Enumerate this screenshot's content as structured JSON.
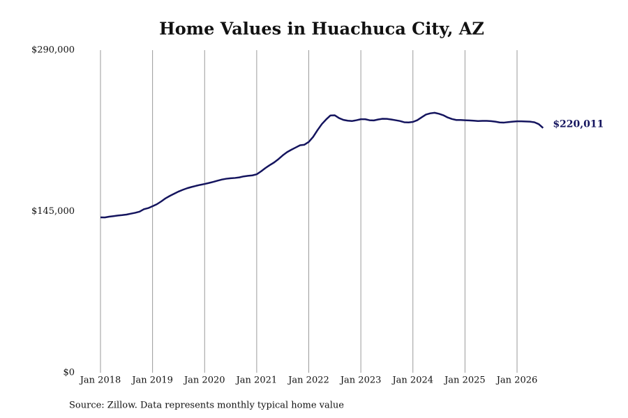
{
  "chart_data": {
    "type": "line",
    "title": "Home Values in Huachuca City, AZ",
    "source": "Source: Zillow. Data represents monthly typical home value",
    "x": [
      "2018-01",
      "2018-02",
      "2018-03",
      "2018-04",
      "2018-05",
      "2018-06",
      "2018-07",
      "2018-08",
      "2018-09",
      "2018-10",
      "2018-11",
      "2018-12",
      "2019-01",
      "2019-02",
      "2019-03",
      "2019-04",
      "2019-05",
      "2019-06",
      "2019-07",
      "2019-08",
      "2019-09",
      "2019-10",
      "2019-11",
      "2019-12",
      "2020-01",
      "2020-02",
      "2020-03",
      "2020-04",
      "2020-05",
      "2020-06",
      "2020-07",
      "2020-08",
      "2020-09",
      "2020-10",
      "2020-11",
      "2020-12",
      "2021-01",
      "2021-02",
      "2021-03",
      "2021-04",
      "2021-05",
      "2021-06",
      "2021-07",
      "2021-08",
      "2021-09",
      "2021-10",
      "2021-11",
      "2021-12",
      "2022-01",
      "2022-02",
      "2022-03",
      "2022-04",
      "2022-05",
      "2022-06",
      "2022-07",
      "2022-08",
      "2022-09",
      "2022-10",
      "2022-11",
      "2022-12",
      "2023-01",
      "2023-02",
      "2023-03",
      "2023-04",
      "2023-05",
      "2023-06",
      "2023-07",
      "2023-08",
      "2023-09",
      "2023-10",
      "2023-11",
      "2023-12",
      "2024-01",
      "2024-02",
      "2024-03",
      "2024-04",
      "2024-05",
      "2024-06",
      "2024-07",
      "2024-08",
      "2024-09",
      "2024-10",
      "2024-11",
      "2024-12",
      "2025-01",
      "2025-02",
      "2025-03",
      "2025-04",
      "2025-05",
      "2025-06",
      "2025-07",
      "2025-08",
      "2025-09",
      "2025-10",
      "2025-11",
      "2025-12",
      "2026-01",
      "2026-02",
      "2026-03",
      "2026-04",
      "2026-05",
      "2026-06",
      "2026-07"
    ],
    "series": [
      {
        "name": "Typical home value",
        "color": "#14145e",
        "values": [
          139700,
          139600,
          140300,
          140800,
          141300,
          141700,
          142200,
          143000,
          143800,
          144800,
          147000,
          148000,
          149700,
          151500,
          154000,
          156800,
          159000,
          161000,
          162900,
          164500,
          165900,
          167000,
          168000,
          168900,
          169700,
          170600,
          171600,
          172700,
          173700,
          174400,
          174800,
          175100,
          175600,
          176500,
          177000,
          177400,
          178400,
          181000,
          184000,
          186600,
          189000,
          192000,
          195400,
          198300,
          200500,
          202500,
          204500,
          205000,
          207500,
          212000,
          218000,
          223500,
          227700,
          231300,
          231400,
          228900,
          227300,
          226600,
          226300,
          227000,
          227900,
          227900,
          227000,
          226800,
          227700,
          228300,
          228200,
          227700,
          227000,
          226300,
          225200,
          225000,
          225500,
          227000,
          229600,
          232100,
          233200,
          233700,
          232800,
          231500,
          229500,
          228100,
          227200,
          227200,
          227000,
          226800,
          226600,
          226300,
          226400,
          226400,
          226200,
          225700,
          225000,
          224900,
          225300,
          225700,
          226000,
          226000,
          225900,
          225700,
          225200,
          223500,
          220011
        ],
        "value_labels": [
          null,
          null,
          null,
          null,
          null,
          null,
          null,
          null,
          null,
          null,
          null,
          null,
          null,
          null,
          null,
          null,
          null,
          null,
          null,
          null,
          null,
          null,
          null,
          null,
          null,
          null,
          null,
          null,
          null,
          null,
          null,
          null,
          null,
          null,
          null,
          null,
          null,
          null,
          null,
          null,
          null,
          null,
          null,
          null,
          null,
          null,
          null,
          null,
          null,
          null,
          null,
          null,
          null,
          null,
          null,
          null,
          null,
          null,
          null,
          null,
          null,
          null,
          null,
          null,
          null,
          null,
          null,
          null,
          null,
          null,
          null,
          null,
          null,
          null,
          null,
          null,
          null,
          null,
          null,
          null,
          null,
          null,
          null,
          null,
          null,
          null,
          null,
          null,
          null,
          null,
          null,
          null,
          null,
          null,
          null,
          null,
          null,
          null,
          null,
          null,
          null,
          null,
          "$220,011"
        ]
      }
    ],
    "xticks": [
      {
        "value": "2018-01",
        "label": "Jan 2018"
      },
      {
        "value": "2019-01",
        "label": "Jan 2019"
      },
      {
        "value": "2020-01",
        "label": "Jan 2020"
      },
      {
        "value": "2021-01",
        "label": "Jan 2021"
      },
      {
        "value": "2022-01",
        "label": "Jan 2022"
      },
      {
        "value": "2023-01",
        "label": "Jan 2023"
      },
      {
        "value": "2024-01",
        "label": "Jan 2024"
      },
      {
        "value": "2025-01",
        "label": "Jan 2025"
      },
      {
        "value": "2026-01",
        "label": "Jan 2026"
      }
    ],
    "ylim": [
      0,
      290000
    ],
    "yticks": [
      {
        "value": 0,
        "label": "$0"
      },
      {
        "value": 145000,
        "label": "$145,000"
      },
      {
        "value": 290000,
        "label": "$290,000"
      }
    ],
    "grid": "x"
  }
}
